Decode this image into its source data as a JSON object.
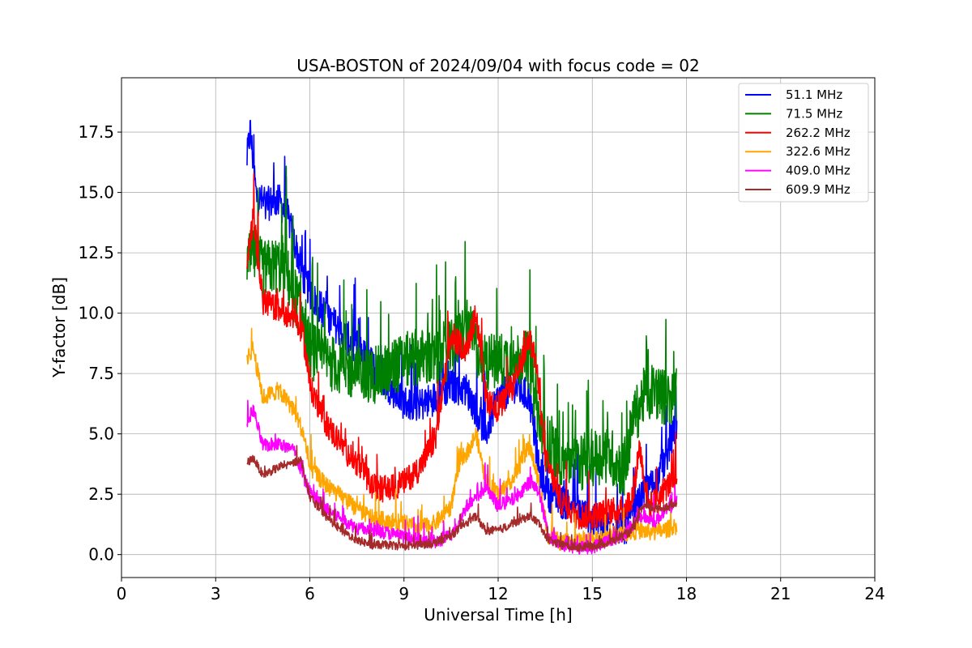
{
  "chart_data": {
    "type": "line",
    "title": "USA-BOSTON of 2024/09/04 with focus code = 02",
    "xlabel": "Universal Time [h]",
    "ylabel": "Y-factor [dB]",
    "xlim": [
      0,
      24
    ],
    "ylim": [
      -0.95,
      19.75
    ],
    "xticks": [
      0,
      3,
      6,
      9,
      12,
      15,
      18,
      21,
      24
    ],
    "yticks": [
      0.0,
      2.5,
      5.0,
      7.5,
      10.0,
      12.5,
      15.0,
      17.5
    ],
    "xtick_labels": [
      "0",
      "3",
      "6",
      "9",
      "12",
      "15",
      "18",
      "21",
      "24"
    ],
    "ytick_labels": [
      "0.0",
      "2.5",
      "5.0",
      "7.5",
      "10.0",
      "12.5",
      "15.0",
      "17.5"
    ],
    "grid": true,
    "legend_position": "top-right",
    "series": [
      {
        "name": "  51.1 MHz",
        "color": "#0000ff",
        "noise": 0.9,
        "x": [
          4.0,
          4.1,
          4.3,
          4.6,
          5.0,
          5.3,
          5.6,
          5.8,
          6.1,
          6.5,
          7.0,
          7.5,
          8.0,
          8.5,
          9.0,
          9.5,
          10.0,
          10.5,
          11.0,
          11.3,
          11.6,
          12.0,
          12.5,
          13.0,
          13.3,
          13.6,
          14.0,
          14.5,
          15.0,
          15.5,
          16.0,
          16.3,
          16.6,
          17.0,
          17.3,
          17.7
        ],
        "y": [
          16.4,
          17.6,
          14.8,
          14.5,
          14.7,
          14.0,
          12.5,
          11.5,
          10.6,
          10.0,
          9.2,
          8.6,
          7.8,
          7.0,
          6.3,
          6.2,
          6.5,
          7.0,
          6.8,
          6.0,
          5.0,
          6.5,
          7.0,
          6.5,
          3.5,
          2.5,
          2.2,
          2.0,
          1.4,
          1.2,
          1.0,
          1.6,
          2.5,
          3.0,
          3.8,
          5.5
        ]
      },
      {
        "name": "  71.5 MHz",
        "color": "#008000",
        "noise": 1.5,
        "x": [
          4.0,
          4.2,
          4.5,
          5.0,
          5.3,
          5.6,
          6.0,
          6.5,
          7.0,
          7.5,
          8.0,
          8.5,
          9.0,
          9.5,
          10.0,
          10.5,
          11.0,
          11.5,
          12.0,
          12.5,
          13.0,
          13.3,
          13.6,
          14.0,
          14.5,
          15.0,
          15.5,
          16.0,
          16.3,
          16.6,
          17.0,
          17.3,
          17.7
        ],
        "y": [
          12.0,
          12.5,
          11.8,
          12.0,
          11.5,
          10.5,
          8.5,
          8.0,
          7.8,
          7.5,
          7.4,
          7.6,
          8.0,
          8.2,
          8.0,
          8.5,
          9.5,
          8.0,
          8.0,
          8.2,
          8.0,
          5.5,
          4.5,
          4.0,
          3.8,
          4.0,
          4.2,
          3.5,
          5.5,
          6.5,
          6.8,
          6.5,
          6.5
        ]
      },
      {
        "name": " 262.2 MHz",
        "color": "#ff0000",
        "noise": 0.7,
        "x": [
          4.0,
          4.2,
          4.5,
          5.0,
          5.5,
          5.8,
          6.0,
          6.5,
          7.0,
          7.5,
          8.0,
          8.5,
          9.0,
          9.5,
          10.0,
          10.5,
          11.0,
          11.3,
          11.6,
          12.0,
          12.5,
          13.0,
          13.2,
          13.5,
          14.0,
          14.5,
          15.0,
          15.5,
          16.0,
          16.3,
          16.5,
          16.8,
          17.0,
          17.5,
          17.7
        ],
        "y": [
          12.0,
          14.0,
          10.5,
          10.2,
          9.8,
          9.0,
          7.0,
          5.5,
          4.5,
          3.8,
          2.8,
          2.7,
          3.0,
          3.6,
          4.8,
          9.0,
          8.5,
          10.0,
          6.5,
          6.0,
          7.0,
          9.0,
          8.0,
          4.0,
          2.2,
          1.6,
          1.6,
          1.8,
          1.8,
          2.5,
          4.5,
          2.0,
          2.2,
          3.0,
          3.2
        ]
      },
      {
        "name": " 322.6 MHz",
        "color": "#ffa500",
        "noise": 0.45,
        "x": [
          4.0,
          4.2,
          4.5,
          5.0,
          5.5,
          5.8,
          6.0,
          6.5,
          7.0,
          7.5,
          8.0,
          8.5,
          9.0,
          9.5,
          10.0,
          10.5,
          10.8,
          11.0,
          11.3,
          11.6,
          12.0,
          12.5,
          13.0,
          13.3,
          13.6,
          14.0,
          14.5,
          15.0,
          15.5,
          16.0,
          16.5,
          17.0,
          17.5,
          17.7
        ],
        "y": [
          8.2,
          8.5,
          6.5,
          6.8,
          6.0,
          5.0,
          3.6,
          2.9,
          2.4,
          1.9,
          1.5,
          1.4,
          1.3,
          1.1,
          1.3,
          2.0,
          4.0,
          4.2,
          5.0,
          3.0,
          2.5,
          3.2,
          4.5,
          3.0,
          0.8,
          0.5,
          0.5,
          0.6,
          0.7,
          0.9,
          1.0,
          0.9,
          1.1,
          1.2
        ]
      },
      {
        "name": " 409.0 MHz",
        "color": "#ff00ff",
        "noise": 0.35,
        "x": [
          4.0,
          4.2,
          4.5,
          5.0,
          5.5,
          5.8,
          6.0,
          6.5,
          7.0,
          7.5,
          8.0,
          8.5,
          9.0,
          9.5,
          10.0,
          10.5,
          11.0,
          11.3,
          11.6,
          12.0,
          12.5,
          13.0,
          13.3,
          13.6,
          14.0,
          14.5,
          15.0,
          15.5,
          16.0,
          16.5,
          17.0,
          17.5,
          17.7
        ],
        "y": [
          5.5,
          6.0,
          4.5,
          4.6,
          4.3,
          3.2,
          2.6,
          1.9,
          1.5,
          1.1,
          1.0,
          0.9,
          0.7,
          0.6,
          0.5,
          0.8,
          2.0,
          2.3,
          2.8,
          2.0,
          2.3,
          3.0,
          2.6,
          0.8,
          0.4,
          0.3,
          0.3,
          0.6,
          0.8,
          1.6,
          1.4,
          2.0,
          2.2
        ]
      },
      {
        "name": " 609.9 MHz",
        "color": "#a52a2a",
        "noise": 0.22,
        "x": [
          4.0,
          4.2,
          4.5,
          5.0,
          5.5,
          5.7,
          6.0,
          6.5,
          7.0,
          7.5,
          8.0,
          8.5,
          9.0,
          9.5,
          10.0,
          10.5,
          11.0,
          11.3,
          11.6,
          12.0,
          12.5,
          13.0,
          13.3,
          13.6,
          14.0,
          14.5,
          15.0,
          15.5,
          16.0,
          16.3,
          16.6,
          17.0,
          17.5,
          17.7
        ],
        "y": [
          3.8,
          4.0,
          3.3,
          3.6,
          3.8,
          4.0,
          2.4,
          1.6,
          1.0,
          0.6,
          0.4,
          0.4,
          0.35,
          0.4,
          0.5,
          0.8,
          1.3,
          1.6,
          1.0,
          1.0,
          1.3,
          1.6,
          1.3,
          0.6,
          0.4,
          0.3,
          0.35,
          0.5,
          0.8,
          1.0,
          2.0,
          1.9,
          2.0,
          2.1
        ]
      }
    ]
  }
}
